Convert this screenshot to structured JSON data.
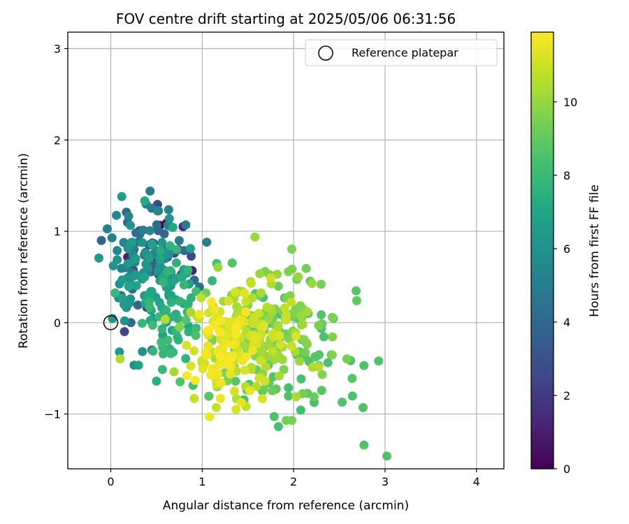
{
  "chart_data": {
    "type": "scatter",
    "title": "FOV centre drift starting at 2025/05/06 06:31:56",
    "xlabel": "Angular distance from reference (arcmin)",
    "ylabel": "Rotation from reference (arcmin)",
    "xlim": [
      -0.47,
      4.3
    ],
    "ylim": [
      -1.6,
      3.18
    ],
    "xticks": [
      0,
      1,
      2,
      3,
      4
    ],
    "xtick_labels": [
      "0",
      "1",
      "2",
      "3",
      "4"
    ],
    "yticks": [
      -1,
      0,
      1,
      2,
      3
    ],
    "ytick_labels": [
      "−1",
      "0",
      "1",
      "2",
      "3"
    ],
    "grid": true,
    "legend": {
      "position": "top-right",
      "entries": [
        "Reference platepar"
      ]
    },
    "reference_point": {
      "x": 0,
      "y": 0,
      "label": "Reference platepar"
    },
    "colorbar": {
      "label": "Hours from first FF file",
      "range": [
        0,
        11.9
      ],
      "ticks": [
        0,
        2,
        4,
        6,
        8,
        10
      ],
      "tick_labels": [
        "0",
        "2",
        "4",
        "6",
        "8",
        "10"
      ],
      "colormap": "viridis"
    },
    "clusters": [
      {
        "hours": 0.2,
        "center": [
          0.6,
          1.05
        ],
        "spread": [
          0.05,
          0.06
        ],
        "n": 2
      },
      {
        "hours": 1.2,
        "center": [
          0.55,
          0.75
        ],
        "spread": [
          0.2,
          0.2
        ],
        "n": 8
      },
      {
        "hours": 2.5,
        "center": [
          0.45,
          0.7
        ],
        "spread": [
          0.25,
          0.35
        ],
        "n": 10
      },
      {
        "hours": 4.0,
        "center": [
          0.4,
          0.8
        ],
        "spread": [
          0.22,
          0.35
        ],
        "n": 22
      },
      {
        "hours": 5.2,
        "center": [
          0.35,
          0.8
        ],
        "spread": [
          0.18,
          0.3
        ],
        "n": 35
      },
      {
        "hours": 6.2,
        "center": [
          0.35,
          0.55
        ],
        "spread": [
          0.2,
          0.35
        ],
        "n": 45
      },
      {
        "hours": 7.0,
        "center": [
          0.55,
          0.35
        ],
        "spread": [
          0.2,
          0.35
        ],
        "n": 40
      },
      {
        "hours": 7.8,
        "center": [
          0.65,
          0.05
        ],
        "spread": [
          0.2,
          0.3
        ],
        "n": 40
      },
      {
        "hours": 8.6,
        "center": [
          1.85,
          -0.3
        ],
        "spread": [
          0.45,
          0.4
        ],
        "n": 70
      },
      {
        "hours": 9.4,
        "center": [
          1.75,
          -0.1
        ],
        "spread": [
          0.4,
          0.4
        ],
        "n": 80
      },
      {
        "hours": 10.3,
        "center": [
          1.55,
          -0.15
        ],
        "spread": [
          0.35,
          0.35
        ],
        "n": 80
      },
      {
        "hours": 11.0,
        "center": [
          1.4,
          -0.25
        ],
        "spread": [
          0.25,
          0.3
        ],
        "n": 75
      },
      {
        "hours": 11.6,
        "center": [
          1.3,
          -0.3
        ],
        "spread": [
          0.15,
          0.25
        ],
        "n": 55
      }
    ],
    "points": [
      {
        "x": 0.12,
        "y": 1.38,
        "hours": 6.5
      },
      {
        "x": 0.43,
        "y": 1.44,
        "hours": 5.0
      },
      {
        "x": 0.61,
        "y": 1.09,
        "hours": 0.2
      },
      {
        "x": 0.82,
        "y": 1.07,
        "hours": 5.0
      },
      {
        "x": 1.05,
        "y": 0.88,
        "hours": 5.0
      },
      {
        "x": 0.89,
        "y": 0.57,
        "hours": 1.2
      },
      {
        "x": 0.97,
        "y": 0.39,
        "hours": 4.5
      },
      {
        "x": 0.22,
        "y": 0.0,
        "hours": 4.0
      },
      {
        "x": 0.45,
        "y": -0.3,
        "hours": 3.5
      },
      {
        "x": 0.5,
        "y": -0.64,
        "hours": 7.5
      },
      {
        "x": 1.08,
        "y": -1.03,
        "hours": 11.6
      },
      {
        "x": 1.92,
        "y": -1.07,
        "hours": 9.4
      },
      {
        "x": 1.98,
        "y": -1.07,
        "hours": 9.4
      },
      {
        "x": 2.77,
        "y": -1.34,
        "hours": 8.6
      },
      {
        "x": 3.02,
        "y": -1.46,
        "hours": 8.6
      },
      {
        "x": 2.69,
        "y": 0.24,
        "hours": 9.0
      },
      {
        "x": 2.93,
        "y": -0.42,
        "hours": 8.6
      },
      {
        "x": 2.77,
        "y": -0.47,
        "hours": 8.6
      },
      {
        "x": 2.76,
        "y": -0.93,
        "hours": 8.6
      },
      {
        "x": 2.53,
        "y": -0.87,
        "hours": 8.6
      },
      {
        "x": 2.64,
        "y": -0.61,
        "hours": 8.8
      },
      {
        "x": 2.05,
        "y": 0.5,
        "hours": 10.0
      },
      {
        "x": 1.75,
        "y": 0.49,
        "hours": 11.0
      },
      {
        "x": 1.53,
        "y": 0.45,
        "hours": 10.5
      },
      {
        "x": 2.3,
        "y": 0.42,
        "hours": 9.4
      },
      {
        "x": 2.2,
        "y": 0.43,
        "hours": 10.0
      },
      {
        "x": 1.2,
        "y": -0.83,
        "hours": 11.6
      },
      {
        "x": 0.97,
        "y": 0.09,
        "hours": 11.6
      },
      {
        "x": 0.93,
        "y": -0.14,
        "hours": 8.4
      },
      {
        "x": 0.72,
        "y": 0.8,
        "hours": 7.8
      }
    ]
  }
}
